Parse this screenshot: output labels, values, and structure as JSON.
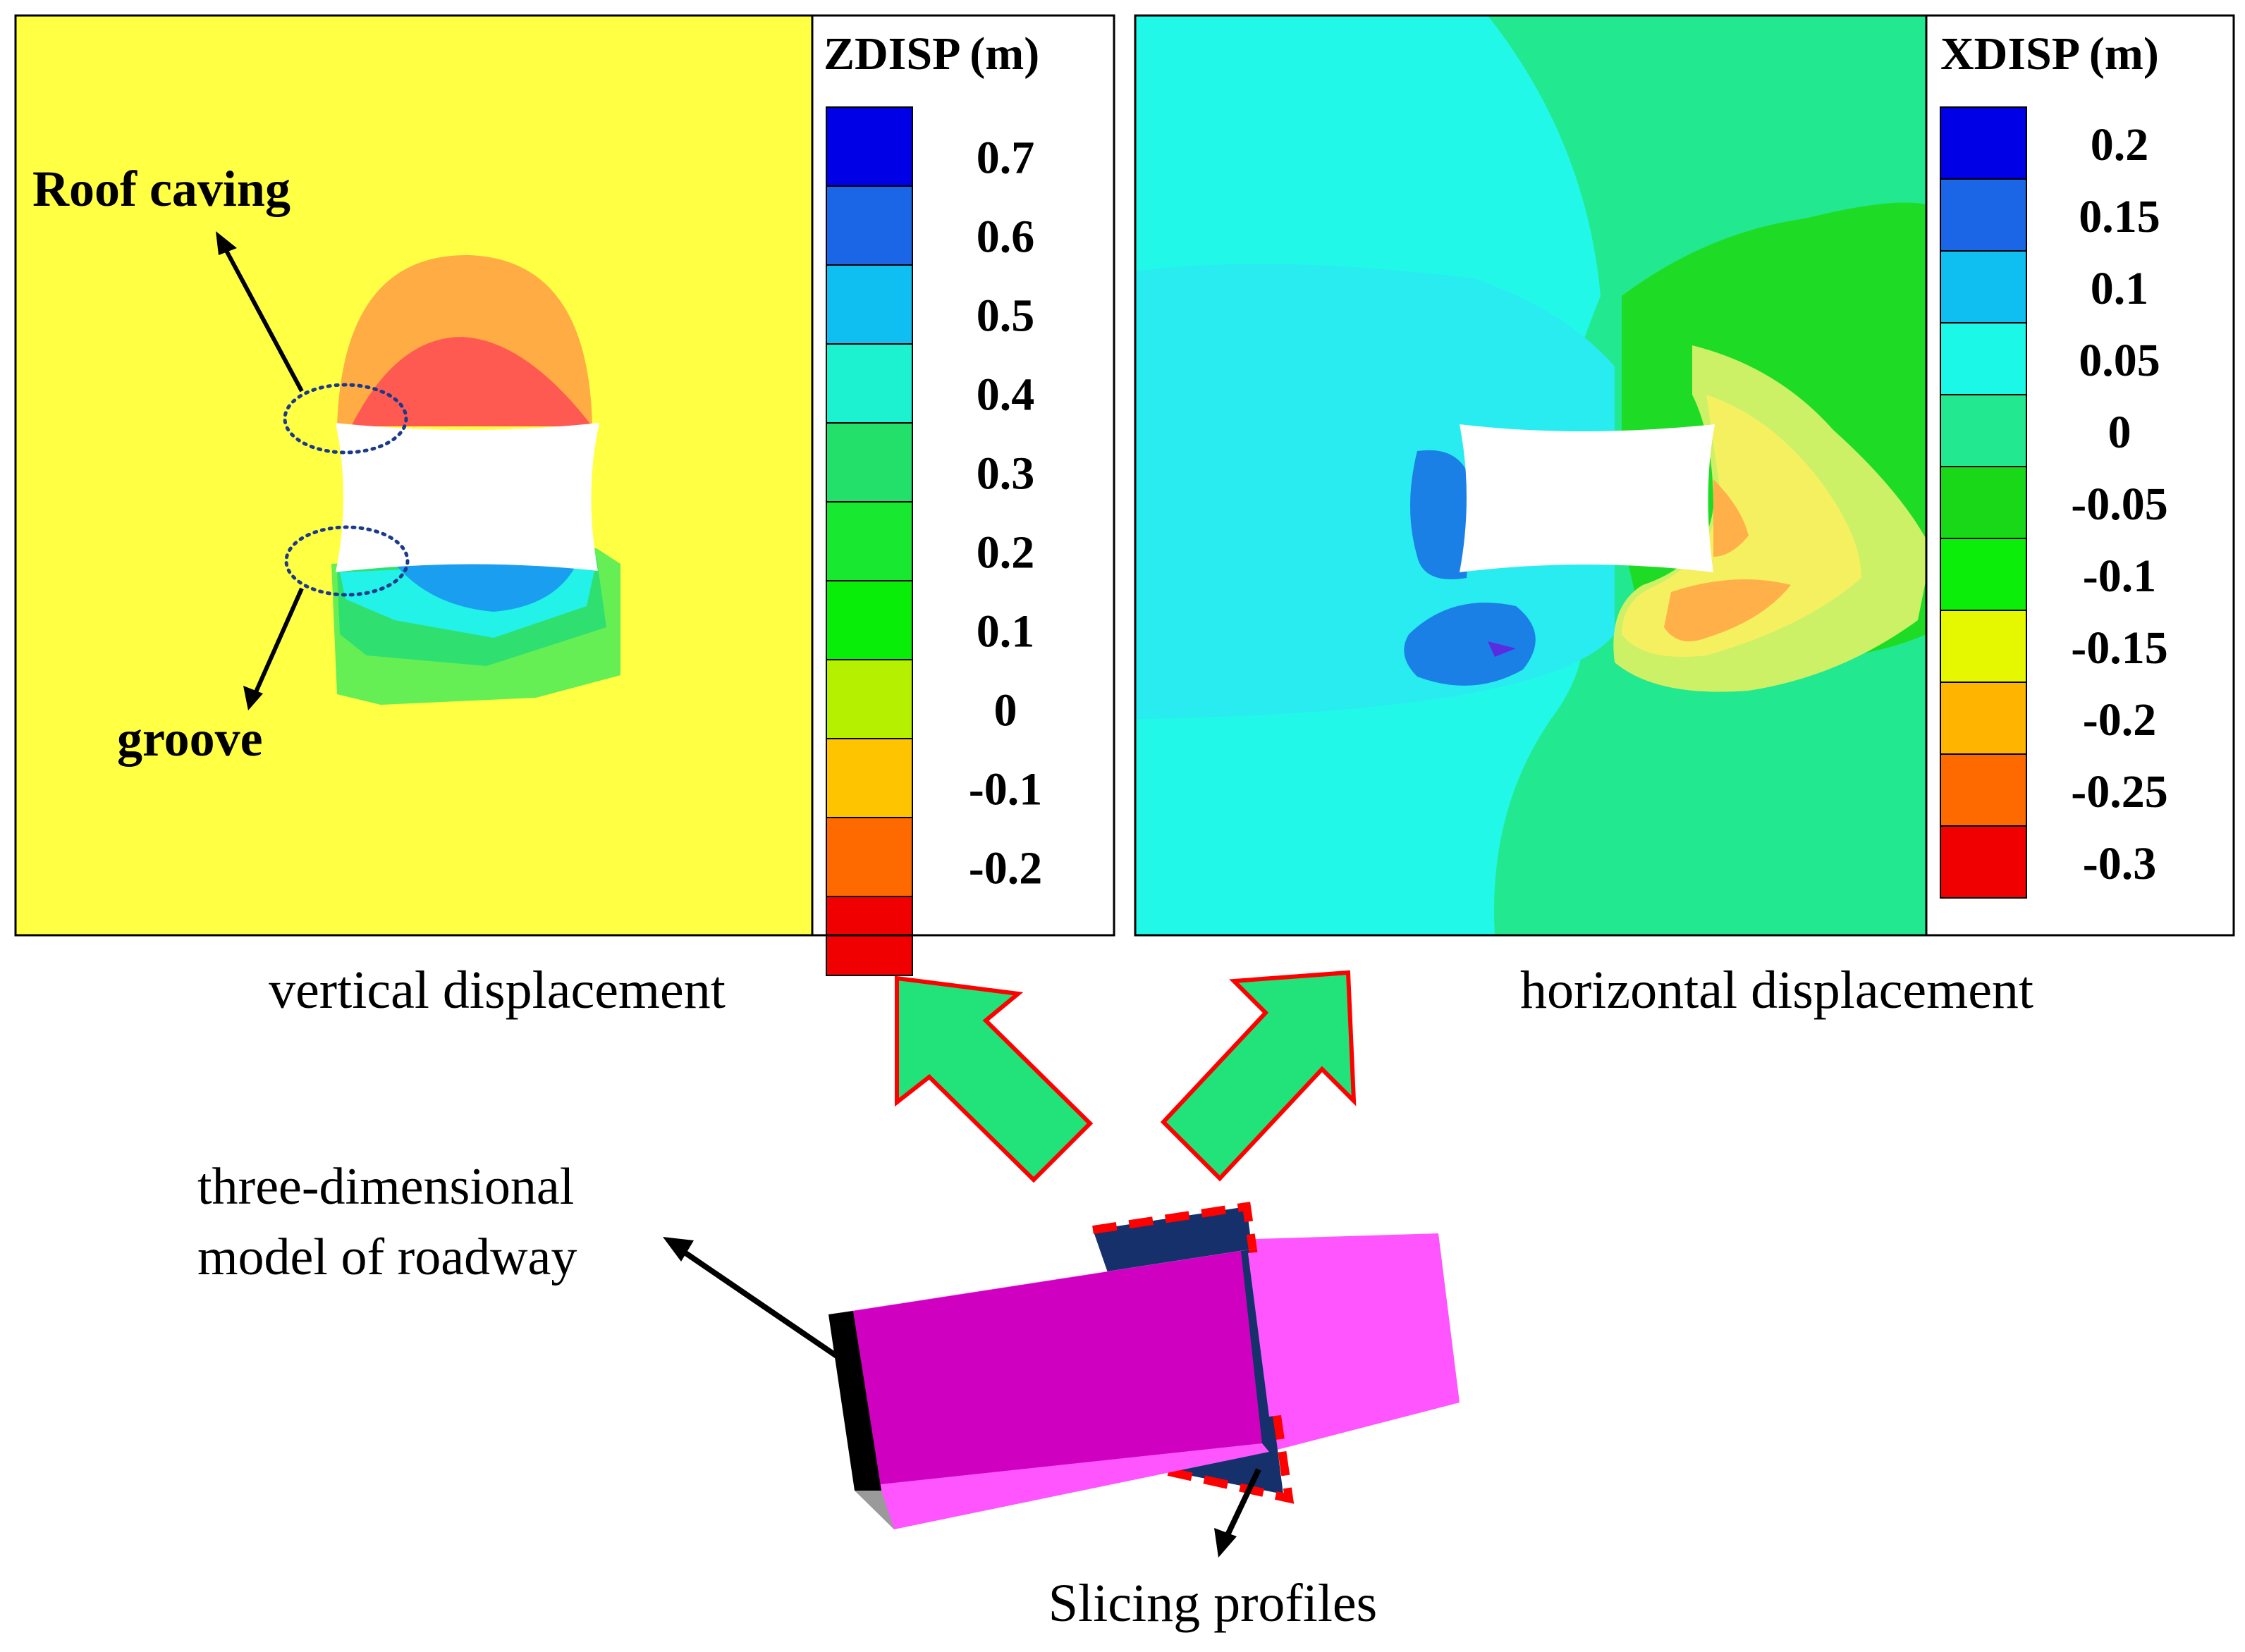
{
  "panels": {
    "left": {
      "legend_title": "ZDISP (m)",
      "legend_ticks": [
        "0.7",
        "0.6",
        "0.5",
        "0.4",
        "0.3",
        "0.2",
        "0.1",
        "0",
        "-0.1",
        "-0.2"
      ],
      "legend_colors": [
        "#0000e6",
        "#1a66e6",
        "#10bff2",
        "#1cf2d0",
        "#22e06a",
        "#18e830",
        "#08ee08",
        "#b4f000",
        "#ffc400",
        "#ff6a00",
        "#f00000"
      ],
      "background_color": "#ffff44",
      "caption": "vertical displacement",
      "annotations": {
        "roof": "Roof caving",
        "groove": "groove"
      }
    },
    "right": {
      "legend_title": "XDISP (m)",
      "legend_ticks": [
        "0.2",
        "0.15",
        "0.1",
        "0.05",
        "0",
        "-0.05",
        "-0.1",
        "-0.15",
        "-0.2",
        "-0.25",
        "-0.3"
      ],
      "legend_colors": [
        "#0000e6",
        "#1a66e6",
        "#10bff2",
        "#1cf8e8",
        "#22e890",
        "#18d818",
        "#0aee0a",
        "#e6f800",
        "#ffb400",
        "#ff6a00",
        "#f00000"
      ],
      "caption": "horizontal displacement"
    }
  },
  "model": {
    "label_line1": "three-dimensional",
    "label_line2": "model of roadway",
    "slicing_label": "Slicing profiles"
  },
  "colors": {
    "arrow_fill": "#22e27a",
    "arrow_stroke": "#ff0000",
    "tunnel_front": "#d000c0",
    "tunnel_light": "#ff55ff",
    "slice": "#15306a",
    "dash": "#ff0000"
  }
}
